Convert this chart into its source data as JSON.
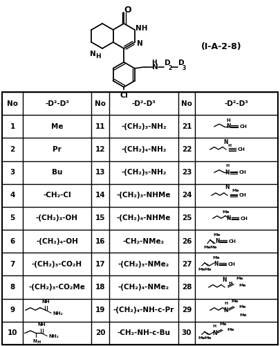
{
  "fig_width": 4.05,
  "fig_height": 5.0,
  "dpi": 100,
  "structure_label": "(I-A-2-8)",
  "col1_data": [
    [
      "1",
      "Me"
    ],
    [
      "2",
      "Pr"
    ],
    [
      "3",
      "Bu"
    ],
    [
      "4",
      "-CH₂-Cl"
    ],
    [
      "5",
      "-(CH₂)₃-OH"
    ],
    [
      "6",
      "-(CH₂)₄-OH"
    ],
    [
      "7",
      "-(CH₂)₃-CO₂H"
    ],
    [
      "8",
      "-(CH₂)₃-CO₂Me"
    ],
    [
      "9",
      null
    ],
    [
      "10",
      null
    ]
  ],
  "col2_data": [
    [
      "11",
      "-(CH₂)₃-NH₂"
    ],
    [
      "12",
      "-(CH₂)₄-NH₂"
    ],
    [
      "13",
      "-(CH₂)₅-NH₂"
    ],
    [
      "14",
      "-(CH₂)₃-NHMe"
    ],
    [
      "15",
      "-(CH₂)₄-NHMe"
    ],
    [
      "16",
      "-CH₂-NMe₂"
    ],
    [
      "17",
      "-(CH₂)₃-NMe₂"
    ],
    [
      "18",
      "-(CH₂)₄-NMe₂"
    ],
    [
      "19",
      "-(CH₂)₄-NH-c-Pr"
    ],
    [
      "20",
      "-CH₂-NH-c-Bu"
    ]
  ],
  "col3_nums": [
    "21",
    "22",
    "23",
    "24",
    "25",
    "26",
    "27",
    "28",
    "29",
    "30"
  ]
}
